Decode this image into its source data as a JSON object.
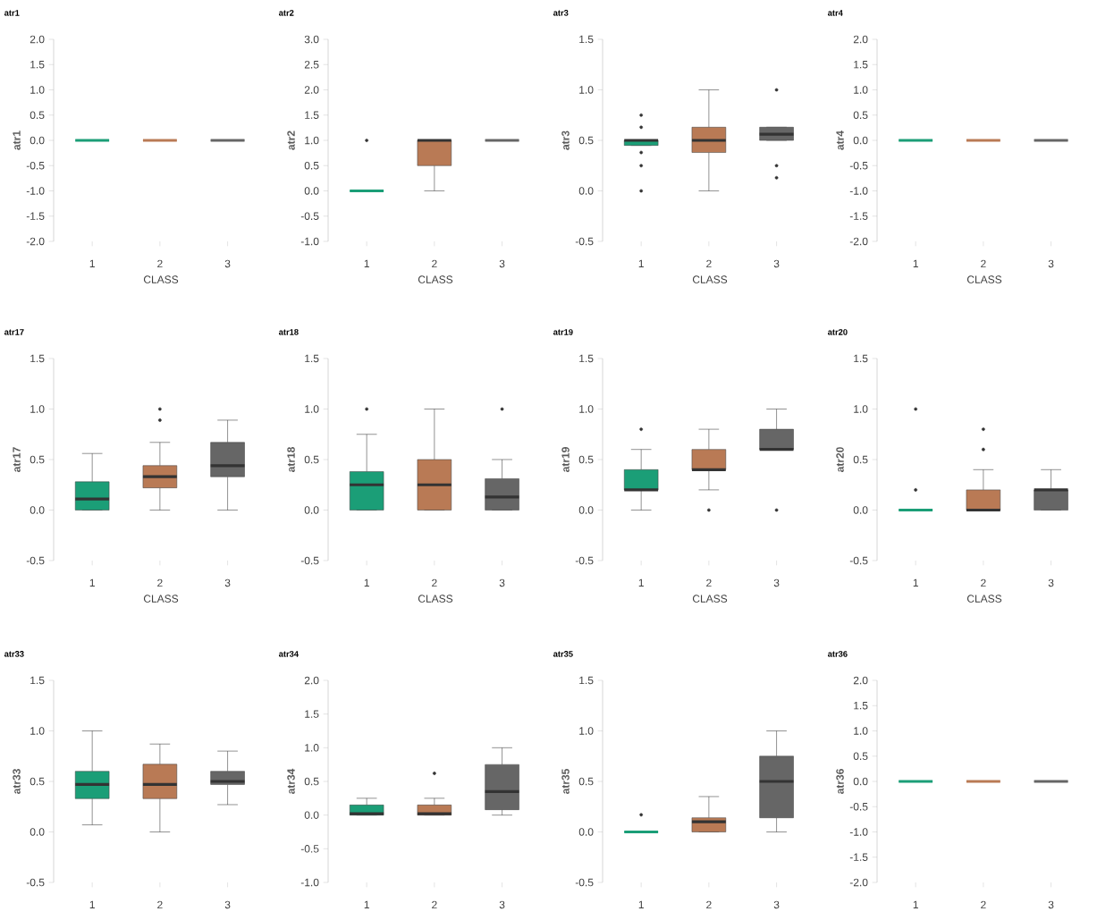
{
  "chart_data": [
    {
      "type": "box",
      "title": "atr1",
      "ylabel": "atr1",
      "xlabel": "CLASS",
      "categories": [
        "1",
        "2",
        "3"
      ],
      "colors": [
        "#1b9e77",
        "#b97a55",
        "#666666"
      ],
      "ylim": [
        -2,
        2
      ],
      "yticks": [
        {
          "value": -2,
          "label": "-2.0"
        },
        {
          "value": -1.5,
          "label": "-1.5"
        },
        {
          "value": -1,
          "label": "-1.0"
        },
        {
          "value": -0.5,
          "label": "-0.5"
        },
        {
          "value": 0,
          "label": "0.0"
        },
        {
          "value": 0.5,
          "label": "0.5"
        },
        {
          "value": 1,
          "label": "1.0"
        },
        {
          "value": 1.5,
          "label": "1.5"
        },
        {
          "value": 2,
          "label": "2.0"
        }
      ],
      "boxes": [
        {
          "low": 0,
          "q1": 0,
          "median": 0,
          "q3": 0,
          "high": 0
        },
        {
          "low": 0,
          "q1": 0,
          "median": 0,
          "q3": 0,
          "high": 0
        },
        {
          "low": 0,
          "q1": 0,
          "median": 0,
          "q3": 0,
          "high": 0
        }
      ]
    },
    {
      "type": "box",
      "title": "atr2",
      "ylabel": "atr2",
      "xlabel": "CLASS",
      "categories": [
        "1",
        "2",
        "3"
      ],
      "colors": [
        "#1b9e77",
        "#b97a55",
        "#666666"
      ],
      "ylim": [
        -1,
        3
      ],
      "yticks": [
        {
          "value": -1,
          "label": "-1.0"
        },
        {
          "value": -0.5,
          "label": "-0.5"
        },
        {
          "value": 0,
          "label": "0.0"
        },
        {
          "value": 0.5,
          "label": "0.5"
        },
        {
          "value": 1,
          "label": "1.0"
        },
        {
          "value": 1.5,
          "label": "1.5"
        },
        {
          "value": 2,
          "label": "2.0"
        },
        {
          "value": 2.5,
          "label": "2.5"
        },
        {
          "value": 3,
          "label": "3.0"
        }
      ],
      "boxes": [
        {
          "low": 0,
          "q1": 0,
          "median": 0,
          "q3": 0,
          "high": 0,
          "outliers": [
            1
          ]
        },
        {
          "low": 0,
          "q1": 0.5,
          "median": 1,
          "q3": 1,
          "high": 1
        },
        {
          "low": 1,
          "q1": 1,
          "median": 1,
          "q3": 1,
          "high": 1
        }
      ]
    },
    {
      "type": "box",
      "title": "atr3",
      "ylabel": "atr3",
      "xlabel": "CLASS",
      "categories": [
        "1",
        "2",
        "3"
      ],
      "colors": [
        "#1b9e77",
        "#b97a55",
        "#666666"
      ],
      "ylim": [
        -0.5,
        1.5
      ],
      "yticks": [
        {
          "value": -0.5,
          "label": "-0.5"
        },
        {
          "value": 0,
          "label": "0.0"
        },
        {
          "value": 0.5,
          "label": "0.5"
        },
        {
          "value": 1,
          "label": "1.0"
        },
        {
          "value": 1.5,
          "label": "1.5"
        }
      ],
      "boxes": [
        {
          "low": 0.45,
          "q1": 0.45,
          "median": 0.5,
          "q3": 0.5,
          "high": 0.5,
          "outliers": [
            0.75,
            0.63,
            0.38,
            0.25,
            0
          ]
        },
        {
          "low": 0,
          "q1": 0.38,
          "median": 0.5,
          "q3": 0.63,
          "high": 1
        },
        {
          "low": 0.5,
          "q1": 0.5,
          "median": 0.56,
          "q3": 0.63,
          "high": 0.63,
          "outliers": [
            1,
            0.25,
            0.13
          ]
        }
      ]
    },
    {
      "type": "box",
      "title": "atr4",
      "ylabel": "atr4",
      "xlabel": "CLASS",
      "categories": [
        "1",
        "2",
        "3"
      ],
      "colors": [
        "#1b9e77",
        "#b97a55",
        "#666666"
      ],
      "ylim": [
        -2,
        2
      ],
      "yticks": [
        {
          "value": -2,
          "label": "-2.0"
        },
        {
          "value": -1.5,
          "label": "-1.5"
        },
        {
          "value": -1,
          "label": "-1.0"
        },
        {
          "value": -0.5,
          "label": "-0.5"
        },
        {
          "value": 0,
          "label": "0.0"
        },
        {
          "value": 0.5,
          "label": "0.5"
        },
        {
          "value": 1,
          "label": "1.0"
        },
        {
          "value": 1.5,
          "label": "1.5"
        },
        {
          "value": 2,
          "label": "2.0"
        }
      ],
      "boxes": [
        {
          "low": 0,
          "q1": 0,
          "median": 0,
          "q3": 0,
          "high": 0
        },
        {
          "low": 0,
          "q1": 0,
          "median": 0,
          "q3": 0,
          "high": 0
        },
        {
          "low": 0,
          "q1": 0,
          "median": 0,
          "q3": 0,
          "high": 0
        }
      ]
    },
    {
      "type": "box",
      "title": "atr17",
      "ylabel": "atr17",
      "xlabel": "CLASS",
      "categories": [
        "1",
        "2",
        "3"
      ],
      "colors": [
        "#1b9e77",
        "#b97a55",
        "#666666"
      ],
      "ylim": [
        -0.5,
        1.5
      ],
      "yticks": [
        {
          "value": -0.5,
          "label": "-0.5"
        },
        {
          "value": 0,
          "label": "0.0"
        },
        {
          "value": 0.5,
          "label": "0.5"
        },
        {
          "value": 1,
          "label": "1.0"
        },
        {
          "value": 1.5,
          "label": "1.5"
        }
      ],
      "boxes": [
        {
          "low": 0,
          "q1": 0,
          "median": 0.11,
          "q3": 0.28,
          "high": 0.56
        },
        {
          "low": 0,
          "q1": 0.22,
          "median": 0.33,
          "q3": 0.44,
          "high": 0.67,
          "outliers": [
            0.89,
            1
          ]
        },
        {
          "low": 0,
          "q1": 0.33,
          "median": 0.44,
          "q3": 0.67,
          "high": 0.89
        }
      ]
    },
    {
      "type": "box",
      "title": "atr18",
      "ylabel": "atr18",
      "xlabel": "CLASS",
      "categories": [
        "1",
        "2",
        "3"
      ],
      "colors": [
        "#1b9e77",
        "#b97a55",
        "#666666"
      ],
      "ylim": [
        -0.5,
        1.5
      ],
      "yticks": [
        {
          "value": -0.5,
          "label": "-0.5"
        },
        {
          "value": 0,
          "label": "0.0"
        },
        {
          "value": 0.5,
          "label": "0.5"
        },
        {
          "value": 1,
          "label": "1.0"
        },
        {
          "value": 1.5,
          "label": "1.5"
        }
      ],
      "boxes": [
        {
          "low": 0,
          "q1": 0,
          "median": 0.25,
          "q3": 0.38,
          "high": 0.75,
          "outliers": [
            1
          ]
        },
        {
          "low": 0,
          "q1": 0,
          "median": 0.25,
          "q3": 0.5,
          "high": 1
        },
        {
          "low": 0,
          "q1": 0,
          "median": 0.13,
          "q3": 0.31,
          "high": 0.5,
          "outliers": [
            1
          ]
        }
      ]
    },
    {
      "type": "box",
      "title": "atr19",
      "ylabel": "atr19",
      "xlabel": "CLASS",
      "categories": [
        "1",
        "2",
        "3"
      ],
      "colors": [
        "#1b9e77",
        "#b97a55",
        "#666666"
      ],
      "ylim": [
        -0.5,
        1.5
      ],
      "yticks": [
        {
          "value": -0.5,
          "label": "-0.5"
        },
        {
          "value": 0,
          "label": "0.0"
        },
        {
          "value": 0.5,
          "label": "0.5"
        },
        {
          "value": 1,
          "label": "1.0"
        },
        {
          "value": 1.5,
          "label": "1.5"
        }
      ],
      "boxes": [
        {
          "low": 0,
          "q1": 0.2,
          "median": 0.2,
          "q3": 0.4,
          "high": 0.6,
          "outliers": [
            0.8
          ]
        },
        {
          "low": 0.2,
          "q1": 0.4,
          "median": 0.4,
          "q3": 0.6,
          "high": 0.8,
          "outliers": [
            0
          ]
        },
        {
          "low": 0.6,
          "q1": 0.6,
          "median": 0.6,
          "q3": 0.8,
          "high": 1,
          "outliers": [
            0
          ]
        }
      ]
    },
    {
      "type": "box",
      "title": "atr20",
      "ylabel": "atr20",
      "xlabel": "CLASS",
      "categories": [
        "1",
        "2",
        "3"
      ],
      "colors": [
        "#1b9e77",
        "#b97a55",
        "#666666"
      ],
      "ylim": [
        -0.5,
        1.5
      ],
      "yticks": [
        {
          "value": -0.5,
          "label": "-0.5"
        },
        {
          "value": 0,
          "label": "0.0"
        },
        {
          "value": 0.5,
          "label": "0.5"
        },
        {
          "value": 1,
          "label": "1.0"
        },
        {
          "value": 1.5,
          "label": "1.5"
        }
      ],
      "boxes": [
        {
          "low": 0,
          "q1": 0,
          "median": 0,
          "q3": 0,
          "high": 0,
          "outliers": [
            1,
            0.2
          ]
        },
        {
          "low": 0,
          "q1": 0,
          "median": 0,
          "q3": 0.2,
          "high": 0.4,
          "outliers": [
            0.6,
            0.8
          ]
        },
        {
          "low": 0,
          "q1": 0,
          "median": 0.2,
          "q3": 0.2,
          "high": 0.4
        }
      ]
    },
    {
      "type": "box",
      "title": "atr33",
      "ylabel": "atr33",
      "categories": [
        "1",
        "2",
        "3"
      ],
      "colors": [
        "#1b9e77",
        "#b97a55",
        "#666666"
      ],
      "ylim": [
        -0.5,
        1.5
      ],
      "yticks": [
        {
          "value": -0.5,
          "label": "-0.5"
        },
        {
          "value": 0,
          "label": "0.0"
        },
        {
          "value": 0.5,
          "label": "0.5"
        },
        {
          "value": 1,
          "label": "1.0"
        },
        {
          "value": 1.5,
          "label": "1.5"
        }
      ],
      "boxes": [
        {
          "low": 0.07,
          "q1": 0.33,
          "median": 0.47,
          "q3": 0.6,
          "high": 1
        },
        {
          "low": 0,
          "q1": 0.33,
          "median": 0.47,
          "q3": 0.67,
          "high": 0.87
        },
        {
          "low": 0.27,
          "q1": 0.47,
          "median": 0.5,
          "q3": 0.6,
          "high": 0.8
        }
      ]
    },
    {
      "type": "box",
      "title": "atr34",
      "ylabel": "atr34",
      "categories": [
        "1",
        "2",
        "3"
      ],
      "colors": [
        "#1b9e77",
        "#b97a55",
        "#666666"
      ],
      "ylim": [
        -1,
        2
      ],
      "yticks": [
        {
          "value": -1,
          "label": "-1.0"
        },
        {
          "value": -0.5,
          "label": "-0.5"
        },
        {
          "value": 0,
          "label": "0.0"
        },
        {
          "value": 0.5,
          "label": "0.5"
        },
        {
          "value": 1,
          "label": "1.0"
        },
        {
          "value": 1.5,
          "label": "1.5"
        },
        {
          "value": 2,
          "label": "2.0"
        }
      ],
      "boxes": [
        {
          "low": 0,
          "q1": 0,
          "median": 0.02,
          "q3": 0.15,
          "high": 0.25
        },
        {
          "low": 0,
          "q1": 0,
          "median": 0.02,
          "q3": 0.15,
          "high": 0.25,
          "outliers": [
            0.62
          ]
        },
        {
          "low": 0,
          "q1": 0.08,
          "median": 0.35,
          "q3": 0.75,
          "high": 1
        }
      ]
    },
    {
      "type": "box",
      "title": "atr35",
      "ylabel": "atr35",
      "categories": [
        "1",
        "2",
        "3"
      ],
      "colors": [
        "#1b9e77",
        "#b97a55",
        "#666666"
      ],
      "ylim": [
        -0.5,
        1.5
      ],
      "yticks": [
        {
          "value": -0.5,
          "label": "-0.5"
        },
        {
          "value": 0,
          "label": "0.0"
        },
        {
          "value": 0.5,
          "label": "0.5"
        },
        {
          "value": 1,
          "label": "1.0"
        },
        {
          "value": 1.5,
          "label": "1.5"
        }
      ],
      "boxes": [
        {
          "low": 0,
          "q1": 0,
          "median": 0,
          "q3": 0,
          "high": 0,
          "outliers": [
            0.17
          ]
        },
        {
          "low": 0,
          "q1": 0,
          "median": 0.1,
          "q3": 0.14,
          "high": 0.35
        },
        {
          "low": 0,
          "q1": 0.14,
          "median": 0.5,
          "q3": 0.75,
          "high": 1
        }
      ]
    },
    {
      "type": "box",
      "title": "atr36",
      "ylabel": "atr36",
      "categories": [
        "1",
        "2",
        "3"
      ],
      "colors": [
        "#1b9e77",
        "#b97a55",
        "#666666"
      ],
      "ylim": [
        -2,
        2
      ],
      "yticks": [
        {
          "value": -2,
          "label": "-2.0"
        },
        {
          "value": -1.5,
          "label": "-1.5"
        },
        {
          "value": -1,
          "label": "-1.0"
        },
        {
          "value": -0.5,
          "label": "-0.5"
        },
        {
          "value": 0,
          "label": "0.0"
        },
        {
          "value": 0.5,
          "label": "0.5"
        },
        {
          "value": 1,
          "label": "1.0"
        },
        {
          "value": 1.5,
          "label": "1.5"
        },
        {
          "value": 2,
          "label": "2.0"
        }
      ],
      "boxes": [
        {
          "low": 0,
          "q1": 0,
          "median": 0,
          "q3": 0,
          "high": 0
        },
        {
          "low": 0,
          "q1": 0,
          "median": 0,
          "q3": 0,
          "high": 0
        },
        {
          "low": 0,
          "q1": 0,
          "median": 0,
          "q3": 0,
          "high": 0
        }
      ]
    }
  ]
}
